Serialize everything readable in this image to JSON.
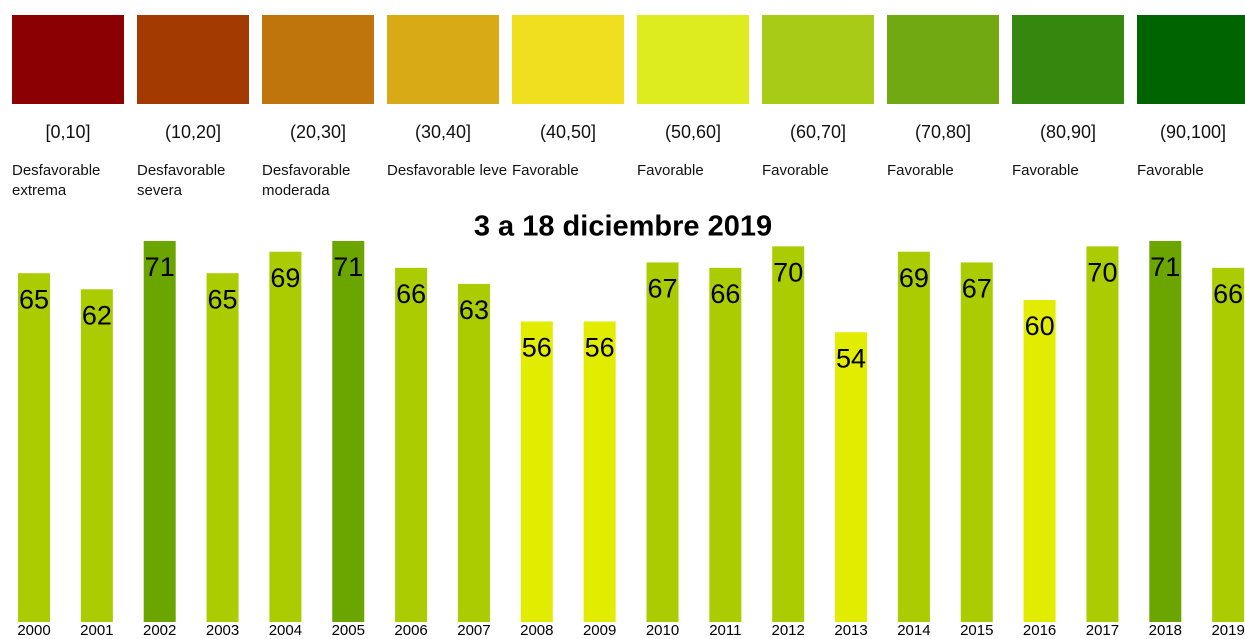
{
  "legend": {
    "items": [
      {
        "color": "#8b0000",
        "range": "[0,10]",
        "label": "Desfavorable extrema"
      },
      {
        "color": "#a33a02",
        "range": "(10,20]",
        "label": "Desfavorable severa"
      },
      {
        "color": "#c0740c",
        "range": "(20,30]",
        "label": "Desfavorable moderada"
      },
      {
        "color": "#d8ab16",
        "range": "(30,40]",
        "label": "Desfavorable leve"
      },
      {
        "color": "#f0df1e",
        "range": "(40,50]",
        "label": "Favorable"
      },
      {
        "color": "#dcec1e",
        "range": "(50,60]",
        "label": "Favorable"
      },
      {
        "color": "#a8cb18",
        "range": "(60,70]",
        "label": "Favorable"
      },
      {
        "color": "#70a912",
        "range": "(70,80]",
        "label": "Favorable"
      },
      {
        "color": "#35880e",
        "range": "(80,90]",
        "label": "Favorable"
      },
      {
        "color": "#006400",
        "range": "(90,100]",
        "label": "Favorable"
      }
    ]
  },
  "chart_data": {
    "type": "bar",
    "title": "3 a 18 diciembre 2019",
    "categories": [
      "2000",
      "2001",
      "2002",
      "2003",
      "2004",
      "2005",
      "2006",
      "2007",
      "2008",
      "2009",
      "2010",
      "2011",
      "2012",
      "2013",
      "2014",
      "2015",
      "2016",
      "2017",
      "2018",
      "2019"
    ],
    "values": [
      65,
      62,
      71,
      65,
      69,
      71,
      66,
      63,
      56,
      56,
      67,
      66,
      70,
      54,
      69,
      67,
      60,
      70,
      71,
      66
    ],
    "colors": [
      "#aacc00",
      "#aacc00",
      "#6ba500",
      "#aacc00",
      "#aacc00",
      "#6ba500",
      "#aacc00",
      "#aacc00",
      "#e2ec00",
      "#e2ec00",
      "#aacc00",
      "#aacc00",
      "#aacc00",
      "#e2ec00",
      "#aacc00",
      "#aacc00",
      "#e2ec00",
      "#aacc00",
      "#6ba500",
      "#aacc00"
    ],
    "ylim": [
      0,
      71
    ]
  }
}
